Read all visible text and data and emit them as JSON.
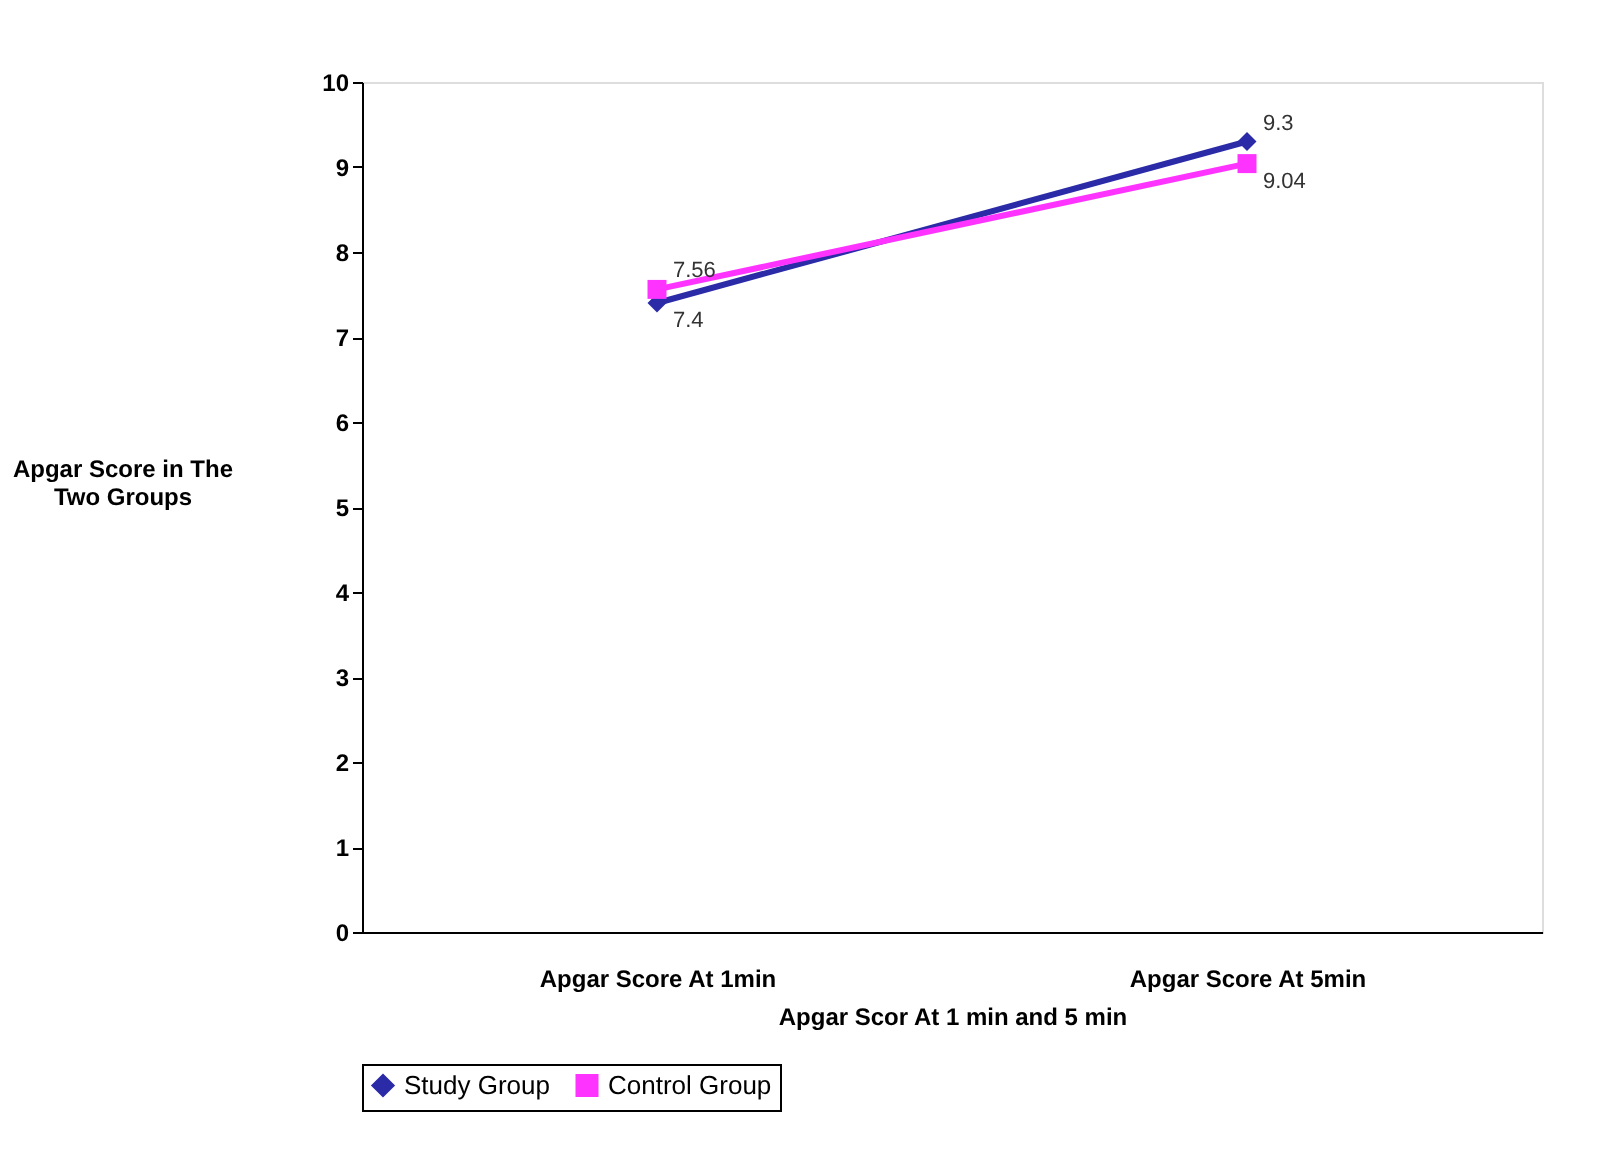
{
  "chart_data": {
    "type": "line",
    "xlabel": "Apgar Scor At 1 min and 5 min",
    "ylabel": "Apgar Score in The Two Groups",
    "categories": [
      "Apgar Score At 1min",
      "Apgar Score At 5min"
    ],
    "series": [
      {
        "name": "Study Group",
        "color": "#2b2ba8",
        "marker": "diamond",
        "values": [
          7.4,
          9.3
        ]
      },
      {
        "name": "Control Group",
        "color": "#ff33ff",
        "marker": "square",
        "values": [
          7.56,
          9.04
        ]
      }
    ],
    "ylim": [
      0,
      10
    ],
    "yticks": [
      0,
      1,
      2,
      3,
      4,
      5,
      6,
      7,
      8,
      9,
      10
    ],
    "data_labels": true,
    "grid": false,
    "legend": "bottom",
    "line_style": "solid"
  }
}
